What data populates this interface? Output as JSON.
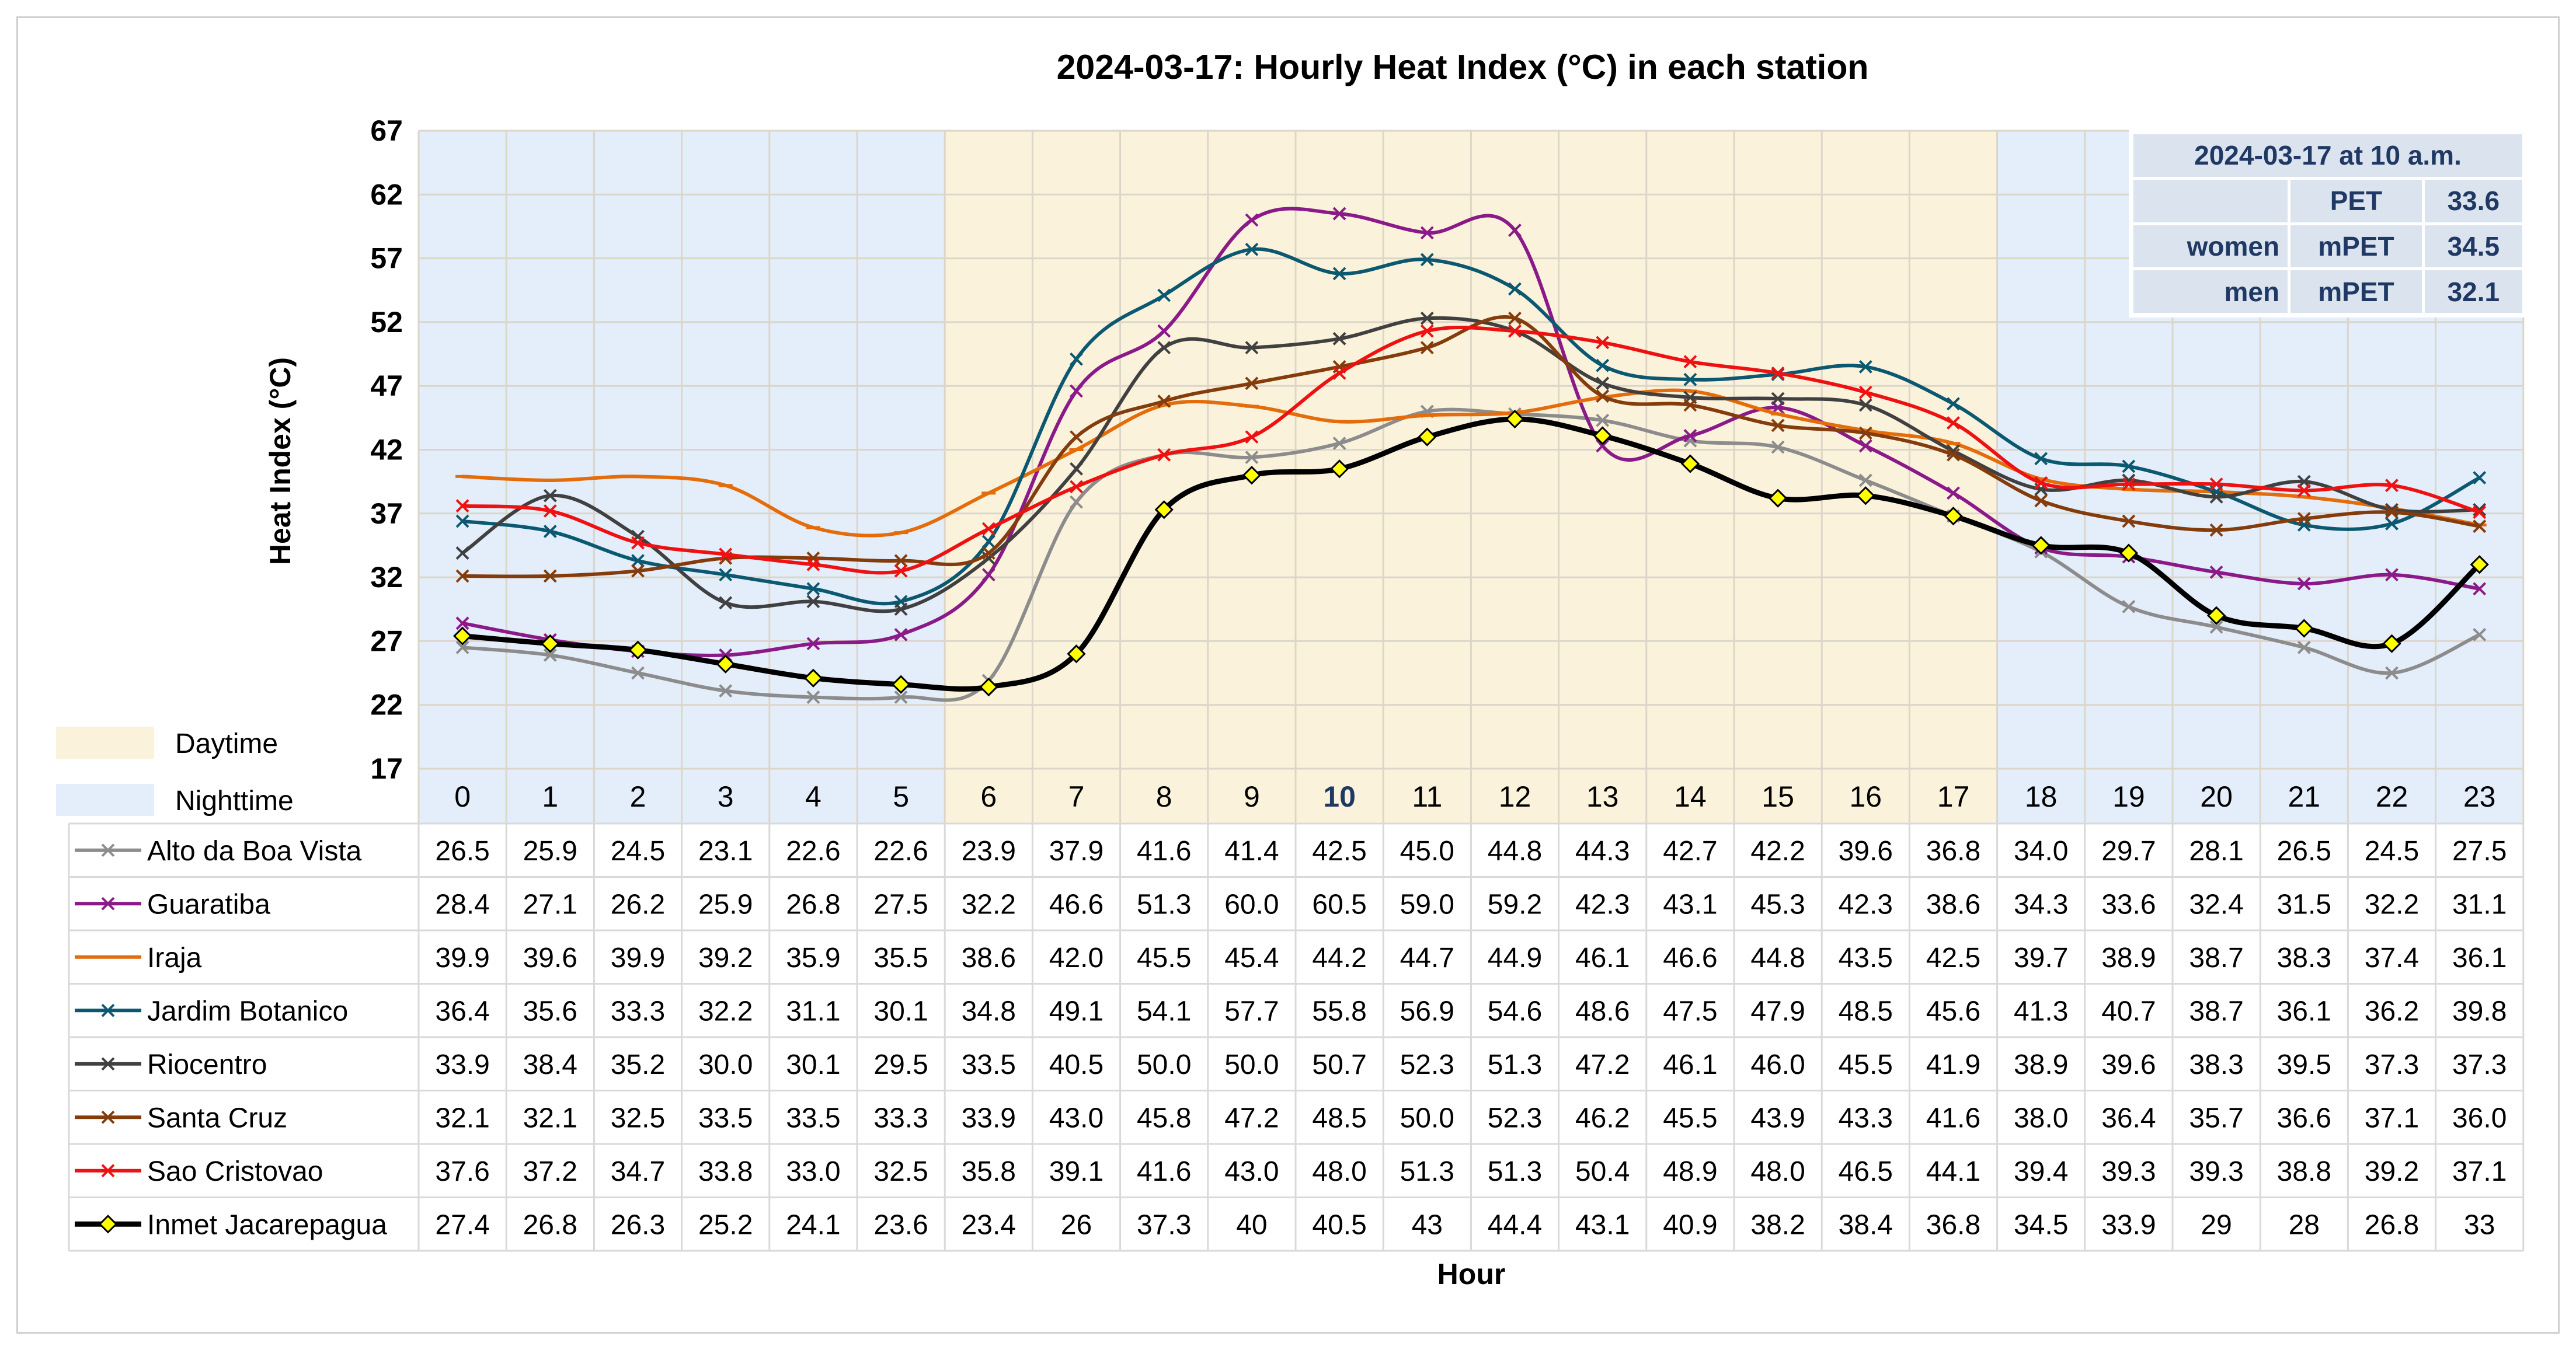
{
  "chart_data": {
    "type": "line",
    "title": "2024-03-17: Hourly Heat Index (°C) in each station",
    "xlabel": "Hour",
    "ylabel": "Heat Index (°C)",
    "ylim": [
      17,
      67
    ],
    "yticks": [
      17,
      22,
      27,
      32,
      37,
      42,
      47,
      52,
      57,
      62,
      67
    ],
    "categories": [
      "0",
      "1",
      "2",
      "3",
      "4",
      "5",
      "6",
      "7",
      "8",
      "9",
      "10",
      "11",
      "12",
      "13",
      "14",
      "15",
      "16",
      "17",
      "18",
      "19",
      "20",
      "21",
      "22",
      "23"
    ],
    "highlight_category": "10",
    "bands": [
      {
        "label": "Daytime",
        "color": "#fbf2dc",
        "from_hour": 6,
        "to_hour": 17
      },
      {
        "label": "Nighttime",
        "color": "#e3eefa",
        "from_hour": 0,
        "to_hour": 5
      },
      {
        "label": "Nighttime",
        "color": "#e3eefa",
        "from_hour": 18,
        "to_hour": 23
      }
    ],
    "legend_items": [
      {
        "label": "Daytime",
        "color": "#fbf2dc"
      },
      {
        "label": "Nighttime",
        "color": "#e3eefa"
      }
    ],
    "series": [
      {
        "name": "Alto da Boa Vista",
        "color": "#8c8c8c",
        "marker": "x",
        "values": [
          26.5,
          25.9,
          24.5,
          23.1,
          22.6,
          22.6,
          23.9,
          37.9,
          41.6,
          41.4,
          42.5,
          45.0,
          44.8,
          44.3,
          42.7,
          42.2,
          39.6,
          36.8,
          34.0,
          29.7,
          28.1,
          26.5,
          24.5,
          27.5
        ],
        "labels": [
          "26.5",
          "25.9",
          "24.5",
          "23.1",
          "22.6",
          "22.6",
          "23.9",
          "37.9",
          "41.6",
          "41.4",
          "42.5",
          "45.0",
          "44.8",
          "44.3",
          "42.7",
          "42.2",
          "39.6",
          "36.8",
          "34.0",
          "29.7",
          "28.1",
          "26.5",
          "24.5",
          "27.5"
        ]
      },
      {
        "name": "Guaratiba",
        "color": "#8b1a89",
        "marker": "x",
        "values": [
          28.4,
          27.1,
          26.2,
          25.9,
          26.8,
          27.5,
          32.2,
          46.6,
          51.3,
          60.0,
          60.5,
          59.0,
          59.2,
          42.3,
          43.1,
          45.3,
          42.3,
          38.6,
          34.3,
          33.6,
          32.4,
          31.5,
          32.2,
          31.1
        ],
        "labels": [
          "28.4",
          "27.1",
          "26.2",
          "25.9",
          "26.8",
          "27.5",
          "32.2",
          "46.6",
          "51.3",
          "60.0",
          "60.5",
          "59.0",
          "59.2",
          "42.3",
          "43.1",
          "45.3",
          "42.3",
          "38.6",
          "34.3",
          "33.6",
          "32.4",
          "31.5",
          "32.2",
          "31.1"
        ]
      },
      {
        "name": "Iraja",
        "color": "#e46c0a",
        "marker": "dash",
        "values": [
          39.9,
          39.6,
          39.9,
          39.2,
          35.9,
          35.5,
          38.6,
          42.0,
          45.5,
          45.4,
          44.2,
          44.7,
          44.9,
          46.1,
          46.6,
          44.8,
          43.5,
          42.5,
          39.7,
          38.9,
          38.7,
          38.3,
          37.4,
          36.1
        ],
        "labels": [
          "39.9",
          "39.6",
          "39.9",
          "39.2",
          "35.9",
          "35.5",
          "38.6",
          "42.0",
          "45.5",
          "45.4",
          "44.2",
          "44.7",
          "44.9",
          "46.1",
          "46.6",
          "44.8",
          "43.5",
          "42.5",
          "39.7",
          "38.9",
          "38.7",
          "38.3",
          "37.4",
          "36.1"
        ]
      },
      {
        "name": "Jardim Botanico",
        "color": "#0b5870",
        "marker": "x",
        "values": [
          36.4,
          35.6,
          33.3,
          32.2,
          31.1,
          30.1,
          34.8,
          49.1,
          54.1,
          57.7,
          55.8,
          56.9,
          54.6,
          48.6,
          47.5,
          47.9,
          48.5,
          45.6,
          41.3,
          40.7,
          38.7,
          36.1,
          36.2,
          39.8
        ],
        "labels": [
          "36.4",
          "35.6",
          "33.3",
          "32.2",
          "31.1",
          "30.1",
          "34.8",
          "49.1",
          "54.1",
          "57.7",
          "55.8",
          "56.9",
          "54.6",
          "48.6",
          "47.5",
          "47.9",
          "48.5",
          "45.6",
          "41.3",
          "40.7",
          "38.7",
          "36.1",
          "36.2",
          "39.8"
        ]
      },
      {
        "name": "Riocentro",
        "color": "#404040",
        "marker": "x",
        "values": [
          33.9,
          38.4,
          35.2,
          30.0,
          30.1,
          29.5,
          33.5,
          40.5,
          50.0,
          50.0,
          50.7,
          52.3,
          51.3,
          47.2,
          46.1,
          46.0,
          45.5,
          41.9,
          38.9,
          39.6,
          38.3,
          39.5,
          37.3,
          37.3
        ],
        "labels": [
          "33.9",
          "38.4",
          "35.2",
          "30.0",
          "30.1",
          "29.5",
          "33.5",
          "40.5",
          "50.0",
          "50.0",
          "50.7",
          "52.3",
          "51.3",
          "47.2",
          "46.1",
          "46.0",
          "45.5",
          "41.9",
          "38.9",
          "39.6",
          "38.3",
          "39.5",
          "37.3",
          "37.3"
        ]
      },
      {
        "name": "Santa Cruz",
        "color": "#843c0c",
        "marker": "x",
        "values": [
          32.1,
          32.1,
          32.5,
          33.5,
          33.5,
          33.3,
          33.9,
          43.0,
          45.8,
          47.2,
          48.5,
          50.0,
          52.3,
          46.2,
          45.5,
          43.9,
          43.3,
          41.6,
          38.0,
          36.4,
          35.7,
          36.6,
          37.1,
          36.0
        ],
        "labels": [
          "32.1",
          "32.1",
          "32.5",
          "33.5",
          "33.5",
          "33.3",
          "33.9",
          "43.0",
          "45.8",
          "47.2",
          "48.5",
          "50.0",
          "52.3",
          "46.2",
          "45.5",
          "43.9",
          "43.3",
          "41.6",
          "38.0",
          "36.4",
          "35.7",
          "36.6",
          "37.1",
          "36.0"
        ]
      },
      {
        "name": "Sao Cristovao",
        "color": "#ee1111",
        "marker": "x",
        "values": [
          37.6,
          37.2,
          34.7,
          33.8,
          33.0,
          32.5,
          35.8,
          39.1,
          41.6,
          43.0,
          48.0,
          51.3,
          51.3,
          50.4,
          48.9,
          48.0,
          46.5,
          44.1,
          39.4,
          39.3,
          39.3,
          38.8,
          39.2,
          37.1
        ],
        "labels": [
          "37.6",
          "37.2",
          "34.7",
          "33.8",
          "33.0",
          "32.5",
          "35.8",
          "39.1",
          "41.6",
          "43.0",
          "48.0",
          "51.3",
          "51.3",
          "50.4",
          "48.9",
          "48.0",
          "46.5",
          "44.1",
          "39.4",
          "39.3",
          "39.3",
          "38.8",
          "39.2",
          "37.1"
        ]
      },
      {
        "name": "Inmet Jacarepagua",
        "color": "#000000",
        "marker": "diamond",
        "values": [
          27.4,
          26.8,
          26.3,
          25.2,
          24.1,
          23.6,
          23.4,
          26,
          37.3,
          40,
          40.5,
          43,
          44.4,
          43.1,
          40.9,
          38.2,
          38.4,
          36.8,
          34.5,
          33.9,
          29,
          28,
          26.8,
          33
        ],
        "labels": [
          "27.4",
          "26.8",
          "26.3",
          "25.2",
          "24.1",
          "23.6",
          "23.4",
          "26",
          "37.3",
          "40",
          "40.5",
          "43",
          "44.4",
          "43.1",
          "40.9",
          "38.2",
          "38.4",
          "36.8",
          "34.5",
          "33.9",
          "29",
          "28",
          "26.8",
          "33"
        ]
      }
    ]
  },
  "pet_box": {
    "title": "2024-03-17 at 10 a.m.",
    "rows": [
      {
        "group": "",
        "metric": "PET",
        "value": "33.6"
      },
      {
        "group": "women",
        "metric": "mPET",
        "value": "34.5"
      },
      {
        "group": "men",
        "metric": "mPET",
        "value": "32.1"
      }
    ]
  }
}
